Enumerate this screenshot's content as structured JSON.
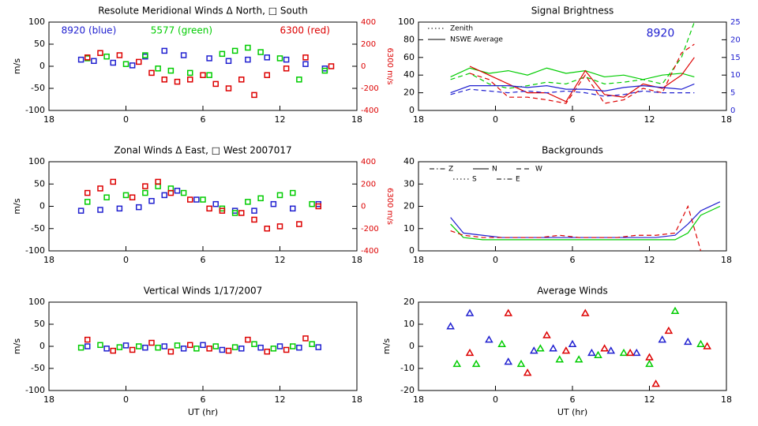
{
  "chart_data": [
    {
      "type": "scatter",
      "title": "Resolute Meridional Winds Δ North, □ South",
      "ylabel": "m/s",
      "y2label": "6300 m/s",
      "y2color": "#dd0000",
      "annotations": [
        {
          "text": "8920 (blue)",
          "color": "#2020d0"
        },
        {
          "text": "5577 (green)",
          "color": "#00cc00"
        },
        {
          "text": "6300 (red)",
          "color": "#dd0000"
        }
      ],
      "xlim": [
        -6,
        18
      ],
      "xticks": [
        {
          "value": -6,
          "label": "18"
        },
        0,
        6,
        12,
        18
      ],
      "ylim": [
        -100,
        100
      ],
      "yticks": [
        -100,
        -50,
        0,
        50,
        100
      ],
      "y2lim": [
        -400,
        400
      ],
      "y2ticks": [
        -400,
        -200,
        0,
        200,
        400
      ],
      "series": [
        {
          "color": "#2020d0",
          "marker": "square",
          "x": [
            -3.5,
            -2.5,
            -1,
            0.5,
            1.5,
            3,
            4.5,
            6.5,
            8,
            9.5,
            11,
            12.5,
            14,
            15.5
          ],
          "values": [
            15,
            12,
            8,
            2,
            22,
            35,
            25,
            18,
            12,
            15,
            20,
            15,
            5,
            -5
          ]
        },
        {
          "color": "#00cc00",
          "marker": "square",
          "x": [
            -3,
            -1.5,
            0,
            1.5,
            2.5,
            3.5,
            5,
            6.5,
            7.5,
            8.5,
            9.5,
            10.5,
            12,
            13.5,
            15.5
          ],
          "values": [
            18,
            22,
            5,
            25,
            -5,
            -10,
            -15,
            -20,
            28,
            35,
            42,
            32,
            18,
            -30,
            -10
          ]
        },
        {
          "color": "#dd0000",
          "marker": "square",
          "axis": "y2",
          "x": [
            -3,
            -2,
            -0.5,
            1,
            2,
            3,
            4,
            5,
            6,
            7,
            8,
            9,
            10,
            11,
            12.5,
            14,
            16
          ],
          "values": [
            80,
            120,
            100,
            40,
            -60,
            -120,
            -140,
            -120,
            -80,
            -160,
            -200,
            -120,
            -260,
            -80,
            -20,
            80,
            0
          ]
        }
      ]
    },
    {
      "type": "line",
      "title": "Signal Brightness",
      "annotations": [
        {
          "text": "8920",
          "color": "#2020d0"
        }
      ],
      "legend": [
        {
          "label": "Zenith",
          "linestyle": "dotted"
        },
        {
          "label": "NSWE Average",
          "linestyle": "solid"
        }
      ],
      "xlim": [
        -6,
        18
      ],
      "xticks": [
        {
          "value": -6,
          "label": "18"
        },
        0,
        6,
        12,
        18
      ],
      "ylim": [
        0,
        100
      ],
      "yticks": [
        0,
        20,
        40,
        60,
        80,
        100
      ],
      "y2lim": [
        0,
        25
      ],
      "y2ticks": [
        0,
        5,
        10,
        15,
        20,
        25
      ],
      "y2color": "#2020d0",
      "series": [
        {
          "color": "#00cc00",
          "linestyle": "solid",
          "x": [
            -3.5,
            -2,
            -0.5,
            1,
            2.5,
            4,
            5.5,
            7,
            8.5,
            10,
            11.5,
            13,
            14.5,
            15.5
          ],
          "values": [
            38,
            48,
            42,
            45,
            40,
            48,
            42,
            45,
            38,
            40,
            35,
            40,
            42,
            38
          ]
        },
        {
          "color": "#00cc00",
          "linestyle": "dashed",
          "x": [
            -3.5,
            -2,
            -0.5,
            1,
            2.5,
            4,
            5.5,
            7,
            8.5,
            10,
            11.5,
            13,
            14.5,
            15.5
          ],
          "values": [
            35,
            42,
            30,
            25,
            28,
            32,
            30,
            38,
            30,
            32,
            35,
            30,
            60,
            100
          ]
        },
        {
          "color": "#dd0000",
          "linestyle": "solid",
          "x": [
            -2,
            -0.5,
            1,
            2.5,
            4,
            5.5,
            7,
            8.5,
            10,
            11.5,
            13,
            14.5,
            15.5
          ],
          "values": [
            50,
            40,
            30,
            20,
            20,
            10,
            45,
            18,
            15,
            30,
            25,
            40,
            60
          ]
        },
        {
          "color": "#dd0000",
          "linestyle": "dashed",
          "x": [
            -2,
            -0.5,
            1,
            2.5,
            4,
            5.5,
            7,
            8.5,
            10,
            11.5,
            13,
            14.5,
            15.5
          ],
          "values": [
            42,
            35,
            15,
            15,
            12,
            8,
            40,
            8,
            12,
            25,
            20,
            65,
            75
          ]
        },
        {
          "color": "#2020d0",
          "linestyle": "solid",
          "axis": "y2",
          "x": [
            -3.5,
            -2,
            -0.5,
            1,
            2.5,
            4,
            5.5,
            7,
            8.5,
            10,
            11.5,
            13,
            14.5,
            15.5
          ],
          "values": [
            5,
            7,
            7,
            7,
            6.5,
            7,
            6,
            6,
            5.5,
            6.5,
            7,
            6.5,
            6,
            7.5
          ]
        },
        {
          "color": "#2020d0",
          "linestyle": "dashed",
          "axis": "y2",
          "x": [
            -3.5,
            -2,
            -0.5,
            1,
            2.5,
            4,
            5.5,
            7,
            8.5,
            10,
            11.5,
            13,
            14.5,
            15.5
          ],
          "values": [
            4.5,
            6,
            5.5,
            5,
            5.5,
            5,
            5.5,
            5,
            4,
            4.5,
            5.5,
            5,
            5,
            5
          ]
        }
      ]
    },
    {
      "type": "scatter",
      "title": "Zonal Winds Δ East, □ West 2007017",
      "ylabel": "m/s",
      "y2label": "6300 m/s",
      "y2color": "#dd0000",
      "xlim": [
        -6,
        18
      ],
      "xticks": [
        {
          "value": -6,
          "label": "18"
        },
        0,
        6,
        12,
        18
      ],
      "ylim": [
        -100,
        100
      ],
      "yticks": [
        -100,
        -50,
        0,
        50,
        100
      ],
      "y2lim": [
        -400,
        400
      ],
      "y2ticks": [
        -400,
        -200,
        0,
        200,
        400
      ],
      "series": [
        {
          "color": "#2020d0",
          "marker": "square",
          "x": [
            -3.5,
            -2,
            -0.5,
            1,
            2,
            3,
            4,
            5.5,
            7,
            8.5,
            10,
            11.5,
            13,
            15
          ],
          "values": [
            -10,
            -8,
            -5,
            -2,
            12,
            25,
            35,
            15,
            5,
            -10,
            -10,
            5,
            -5,
            5
          ]
        },
        {
          "color": "#00cc00",
          "marker": "square",
          "x": [
            -3,
            -1.5,
            0,
            1.5,
            2.5,
            3.5,
            4.5,
            6,
            7.5,
            8.5,
            9.5,
            10.5,
            12,
            13,
            14.5
          ],
          "values": [
            10,
            20,
            25,
            30,
            45,
            40,
            30,
            15,
            -5,
            -15,
            10,
            18,
            25,
            30,
            5
          ]
        },
        {
          "color": "#dd0000",
          "marker": "square",
          "axis": "y2",
          "x": [
            -3,
            -2,
            -1,
            0.5,
            1.5,
            2.5,
            3.5,
            5,
            6.5,
            7.5,
            9,
            10,
            11,
            12,
            13.5,
            15
          ],
          "values": [
            120,
            160,
            220,
            80,
            180,
            220,
            120,
            60,
            -20,
            -40,
            -60,
            -120,
            -200,
            -180,
            -160,
            0
          ]
        }
      ]
    },
    {
      "type": "line",
      "title": "Backgrounds",
      "legend_labels": [
        "Z",
        "N",
        "W",
        "S",
        "E"
      ],
      "xlim": [
        -6,
        18
      ],
      "xticks": [
        {
          "value": -6,
          "label": "18"
        },
        0,
        6,
        12,
        18
      ],
      "ylim": [
        0,
        40
      ],
      "yticks": [
        0,
        10,
        20,
        30,
        40
      ],
      "series": [
        {
          "color": "#00cc00",
          "linestyle": "solid",
          "x": [
            -3.5,
            -2.5,
            -1,
            0.5,
            2,
            3.5,
            5,
            6.5,
            8,
            9.5,
            11,
            12.5,
            14,
            15,
            16,
            17.5
          ],
          "values": [
            12,
            6,
            5,
            5,
            5,
            5,
            5,
            5,
            5,
            5,
            5,
            5,
            5,
            8,
            16,
            20
          ]
        },
        {
          "color": "#2020d0",
          "linestyle": "solid",
          "x": [
            -3.5,
            -2.5,
            -1,
            0.5,
            2,
            3.5,
            5,
            6.5,
            8,
            9.5,
            11,
            12.5,
            14,
            15,
            16,
            17.5
          ],
          "values": [
            15,
            8,
            7,
            6,
            6,
            6,
            6,
            6,
            6,
            6,
            6,
            6,
            7,
            12,
            18,
            22
          ]
        },
        {
          "color": "#dd0000",
          "linestyle": "dashed",
          "x": [
            -3.5,
            -2.5,
            -1,
            0.5,
            2,
            3.5,
            5,
            6.5,
            8,
            9.5,
            11,
            12.5,
            14,
            15,
            16,
            17.5
          ],
          "values": [
            9,
            7,
            6,
            6,
            6,
            6,
            7,
            6,
            6,
            6,
            7,
            7,
            8,
            20,
            0,
            null
          ]
        }
      ]
    },
    {
      "type": "scatter",
      "title": "Vertical Winds 1/17/2007",
      "ylabel": "m/s",
      "xlabel": "UT (hr)",
      "xlim": [
        -6,
        18
      ],
      "xticks": [
        {
          "value": -6,
          "label": "18"
        },
        0,
        6,
        12,
        18
      ],
      "ylim": [
        -100,
        100
      ],
      "yticks": [
        -100,
        -50,
        0,
        50,
        100
      ],
      "series": [
        {
          "color": "#2020d0",
          "marker": "square",
          "x": [
            -3,
            -1.5,
            0,
            1.5,
            3,
            4.5,
            6,
            7.5,
            9,
            10.5,
            12,
            13.5,
            15
          ],
          "values": [
            0,
            -5,
            2,
            -3,
            0,
            -5,
            3,
            -8,
            -5,
            -3,
            0,
            -3,
            -2
          ]
        },
        {
          "color": "#00cc00",
          "marker": "square",
          "x": [
            -3.5,
            -2,
            -0.5,
            1,
            2.5,
            4,
            5.5,
            7,
            8.5,
            10,
            11.5,
            13,
            14.5
          ],
          "values": [
            -3,
            3,
            -2,
            0,
            -3,
            2,
            -5,
            0,
            -2,
            5,
            -5,
            0,
            5
          ]
        },
        {
          "color": "#dd0000",
          "marker": "square",
          "x": [
            -3,
            -1,
            0.5,
            2,
            3.5,
            5,
            6.5,
            8,
            9.5,
            11,
            12.5,
            14
          ],
          "values": [
            15,
            -10,
            -8,
            8,
            -12,
            3,
            -5,
            -10,
            15,
            -12,
            -8,
            18
          ]
        }
      ]
    },
    {
      "type": "scatter",
      "title": "Average Winds",
      "ylabel": "m/s",
      "xlabel": "UT (hr)",
      "xlim": [
        -6,
        18
      ],
      "xticks": [
        {
          "value": -6,
          "label": "18"
        },
        0,
        6,
        12,
        18
      ],
      "ylim": [
        -20,
        20
      ],
      "yticks": [
        -20,
        -10,
        0,
        10,
        20
      ],
      "series": [
        {
          "color": "#2020d0",
          "marker": "triangle",
          "x": [
            -3.5,
            -2,
            -0.5,
            1,
            3,
            4.5,
            6,
            7.5,
            9,
            11,
            13,
            15
          ],
          "values": [
            9,
            15,
            3,
            -7,
            -2,
            -1,
            1,
            -3,
            -2,
            -3,
            3,
            2
          ]
        },
        {
          "color": "#00cc00",
          "marker": "triangle",
          "x": [
            -3,
            -1.5,
            0.5,
            2,
            3.5,
            5,
            6.5,
            8,
            10,
            12,
            14,
            16
          ],
          "values": [
            -8,
            -8,
            1,
            -8,
            -1,
            -6,
            -6,
            -4,
            -3,
            -8,
            16,
            1
          ]
        },
        {
          "color": "#dd0000",
          "marker": "triangle",
          "x": [
            -2,
            1,
            2.5,
            4,
            5.5,
            7,
            8.5,
            10.5,
            12,
            12.5,
            13.5,
            16.5
          ],
          "values": [
            -3,
            15,
            -12,
            5,
            -2,
            15,
            -1,
            -3,
            -5,
            -17,
            7,
            0
          ]
        }
      ]
    }
  ]
}
